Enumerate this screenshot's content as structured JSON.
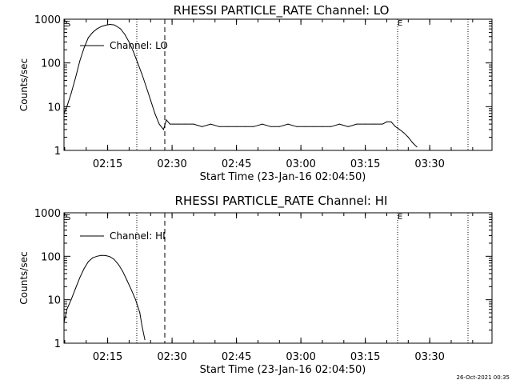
{
  "footer": {
    "timestamp": "26-Oct-2021 00:35"
  },
  "chart_data": [
    {
      "type": "line",
      "title": "RHESSI PARTICLE_RATE Channel: LO",
      "xlabel": "Start Time (23-Jan-16 02:04:50)",
      "ylabel": "Counts/sec",
      "yscale": "log",
      "ylim": [
        1,
        1000
      ],
      "xlim": [
        "02:04:50",
        "03:44:30"
      ],
      "xticks": [
        "02:15",
        "02:30",
        "02:45",
        "03:00",
        "03:15",
        "03:30"
      ],
      "yticks": [
        "1",
        "10",
        "100",
        "1000"
      ],
      "legend": {
        "label": "Channel: LO",
        "position": "top-left"
      },
      "grid": false,
      "markers": {
        "start_label": "S",
        "end_label": "E"
      },
      "series": [
        {
          "name": "Channel: LO",
          "x": [
            "02:04:50",
            "02:05:30",
            "02:06:30",
            "02:07:30",
            "02:08:30",
            "02:09:30",
            "02:10:30",
            "02:11:30",
            "02:12:30",
            "02:13:30",
            "02:14:30",
            "02:15:30",
            "02:16:30",
            "02:17:00",
            "02:18:00",
            "02:19:00",
            "02:20:00",
            "02:21:00",
            "02:22:00",
            "02:23:00",
            "02:24:00",
            "02:25:00",
            "02:26:00",
            "02:27:00",
            "02:28:00",
            "02:28:40",
            "02:29:30",
            "02:30:30",
            "02:31:30",
            "02:33:00",
            "02:35:00",
            "02:37:00",
            "02:39:00",
            "02:41:00",
            "02:43:00",
            "02:45:00",
            "02:47:00",
            "02:49:00",
            "02:51:00",
            "02:53:00",
            "02:55:00",
            "02:57:00",
            "02:59:00",
            "03:01:00",
            "03:03:00",
            "03:05:00",
            "03:07:00",
            "03:09:00",
            "03:11:00",
            "03:13:00",
            "03:15:00",
            "03:17:00",
            "03:19:00",
            "03:20:00",
            "03:21:00",
            "03:22:00",
            "03:23:00",
            "03:24:00",
            "03:25:00",
            "03:26:00",
            "03:27:00"
          ],
          "y": [
            7,
            10,
            20,
            45,
            110,
            220,
            380,
            500,
            600,
            680,
            730,
            760,
            740,
            700,
            600,
            450,
            300,
            180,
            100,
            55,
            28,
            14,
            7,
            4,
            3,
            5,
            4,
            4,
            4,
            4,
            4,
            3.5,
            4,
            3.5,
            3.5,
            3.5,
            3.5,
            3.5,
            4,
            3.5,
            3.5,
            4,
            3.5,
            3.5,
            3.5,
            3.5,
            3.5,
            4,
            3.5,
            4,
            4,
            4,
            4,
            4.5,
            4.5,
            3.5,
            3,
            2.5,
            2,
            1.5,
            1.2
          ]
        }
      ]
    },
    {
      "type": "line",
      "title": "RHESSI PARTICLE_RATE Channel: HI",
      "xlabel": "Start Time (23-Jan-16 02:04:50)",
      "ylabel": "Counts/sec",
      "yscale": "log",
      "ylim": [
        1,
        1000
      ],
      "xlim": [
        "02:04:50",
        "03:44:30"
      ],
      "xticks": [
        "02:15",
        "02:30",
        "02:45",
        "03:00",
        "03:15",
        "03:30"
      ],
      "yticks": [
        "1",
        "10",
        "100",
        "1000"
      ],
      "legend": {
        "label": "Channel: HI",
        "position": "top-left"
      },
      "grid": false,
      "markers": {
        "start_label": "S",
        "end_label": "E"
      },
      "series": [
        {
          "name": "Channel: HI",
          "x": [
            "02:04:50",
            "02:05:30",
            "02:06:30",
            "02:07:30",
            "02:08:30",
            "02:09:30",
            "02:10:30",
            "02:11:30",
            "02:12:30",
            "02:13:30",
            "02:14:30",
            "02:15:30",
            "02:16:30",
            "02:17:30",
            "02:18:30",
            "02:19:30",
            "02:20:30",
            "02:21:30",
            "02:22:30",
            "02:23:00",
            "02:23:40"
          ],
          "y": [
            3,
            6,
            10,
            18,
            32,
            52,
            75,
            92,
            100,
            105,
            104,
            98,
            85,
            65,
            45,
            28,
            17,
            10,
            5,
            2.5,
            1.2
          ]
        }
      ]
    }
  ]
}
